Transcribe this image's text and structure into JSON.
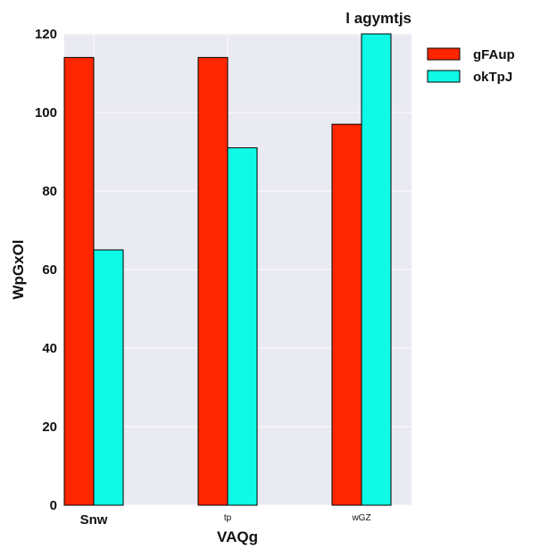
{
  "chart_data": {
    "type": "bar",
    "title": "l agymtjs",
    "xlabel": "VAQg",
    "ylabel": "WpGxOl",
    "categories": [
      "Snw",
      "tp",
      "wGZ"
    ],
    "series": [
      {
        "name": "gFAup",
        "values": [
          114,
          114,
          97
        ],
        "color": "#ff2600"
      },
      {
        "name": "okTpJ",
        "values": [
          65,
          91,
          120
        ],
        "color": "#0ffae6"
      }
    ],
    "ylim": [
      0,
      120
    ],
    "yticks": [
      0,
      20,
      40,
      60,
      80,
      100,
      120
    ],
    "grid": true,
    "legend_position": "right, outside plot",
    "background_color": "#eaeaf2"
  }
}
